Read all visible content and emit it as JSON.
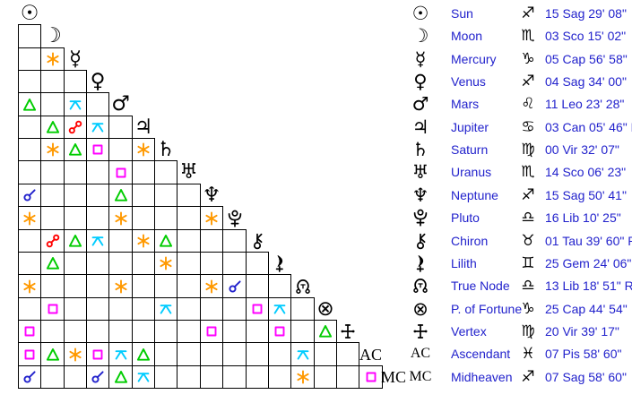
{
  "colors": {
    "background": "#FFFFFF",
    "grid_line": "#000000",
    "glyph_color": "#000000",
    "table_text": "#2222CC",
    "aspects": {
      "conjunction": "#2222CC",
      "sextile": "#FF9900",
      "square": "#FF00FF",
      "trine": "#00CC00",
      "opposition": "#FF0000",
      "quincunx": "#00CCFF"
    }
  },
  "aspect_grid": {
    "rows": [
      {
        "planet": "Sun",
        "glyph_char": "☉",
        "aspects": []
      },
      {
        "planet": "Moon",
        "glyph_char": "☽",
        "aspects": []
      },
      {
        "planet": "Mercury",
        "glyph_char": "☿",
        "aspects": [
          {
            "with": 1,
            "aspect": "sextile"
          }
        ]
      },
      {
        "planet": "Venus",
        "glyph_char": "♀",
        "aspects": []
      },
      {
        "planet": "Mars",
        "glyph_char": "♂",
        "aspects": [
          {
            "with": 0,
            "aspect": "trine"
          },
          {
            "with": 2,
            "aspect": "quincunx"
          }
        ]
      },
      {
        "planet": "Jupiter",
        "glyph_char": "♃",
        "aspects": [
          {
            "with": 1,
            "aspect": "trine"
          },
          {
            "with": 2,
            "aspect": "opposition"
          },
          {
            "with": 3,
            "aspect": "quincunx"
          }
        ]
      },
      {
        "planet": "Saturn",
        "glyph_char": "♄",
        "aspects": [
          {
            "with": 1,
            "aspect": "sextile"
          },
          {
            "with": 2,
            "aspect": "trine"
          },
          {
            "with": 3,
            "aspect": "square"
          },
          {
            "with": 5,
            "aspect": "sextile"
          }
        ]
      },
      {
        "planet": "Uranus",
        "glyph_char": "♅",
        "aspects": [
          {
            "with": 4,
            "aspect": "square"
          }
        ]
      },
      {
        "planet": "Neptune",
        "glyph_char": "♆",
        "aspects": [
          {
            "with": 0,
            "aspect": "conjunction"
          },
          {
            "with": 4,
            "aspect": "trine"
          }
        ]
      },
      {
        "planet": "Pluto",
        "glyph_svg": "pluto",
        "aspects": [
          {
            "with": 0,
            "aspect": "sextile"
          },
          {
            "with": 4,
            "aspect": "sextile"
          },
          {
            "with": 8,
            "aspect": "sextile"
          }
        ]
      },
      {
        "planet": "Chiron",
        "glyph_svg": "chiron",
        "aspects": [
          {
            "with": 1,
            "aspect": "opposition"
          },
          {
            "with": 2,
            "aspect": "trine"
          },
          {
            "with": 3,
            "aspect": "quincunx"
          },
          {
            "with": 5,
            "aspect": "sextile"
          },
          {
            "with": 6,
            "aspect": "trine"
          }
        ]
      },
      {
        "planet": "Lilith",
        "glyph_svg": "lilith",
        "aspects": [
          {
            "with": 1,
            "aspect": "trine"
          },
          {
            "with": 6,
            "aspect": "sextile"
          }
        ]
      },
      {
        "planet": "True Node",
        "glyph_svg": "true-node",
        "aspects": [
          {
            "with": 0,
            "aspect": "sextile"
          },
          {
            "with": 4,
            "aspect": "sextile"
          },
          {
            "with": 8,
            "aspect": "sextile"
          },
          {
            "with": 9,
            "aspect": "conjunction"
          }
        ]
      },
      {
        "planet": "P. of Fortune",
        "glyph_char": "⊗",
        "aspects": [
          {
            "with": 1,
            "aspect": "square"
          },
          {
            "with": 6,
            "aspect": "quincunx"
          },
          {
            "with": 10,
            "aspect": "square"
          },
          {
            "with": 11,
            "aspect": "quincunx"
          }
        ]
      },
      {
        "planet": "Vertex",
        "glyph_svg": "vertex",
        "aspects": [
          {
            "with": 0,
            "aspect": "square"
          },
          {
            "with": 8,
            "aspect": "square"
          },
          {
            "with": 11,
            "aspect": "square"
          },
          {
            "with": 13,
            "aspect": "trine"
          }
        ]
      },
      {
        "planet": "Ascendant",
        "glyph_text": "AC",
        "aspects": [
          {
            "with": 0,
            "aspect": "square"
          },
          {
            "with": 1,
            "aspect": "trine"
          },
          {
            "with": 2,
            "aspect": "sextile"
          },
          {
            "with": 3,
            "aspect": "square"
          },
          {
            "with": 4,
            "aspect": "quincunx"
          },
          {
            "with": 5,
            "aspect": "trine"
          },
          {
            "with": 12,
            "aspect": "quincunx"
          }
        ]
      },
      {
        "planet": "Midheaven",
        "glyph_text": "MC",
        "aspects": [
          {
            "with": 0,
            "aspect": "conjunction"
          },
          {
            "with": 3,
            "aspect": "conjunction"
          },
          {
            "with": 4,
            "aspect": "trine"
          },
          {
            "with": 5,
            "aspect": "quincunx"
          },
          {
            "with": 12,
            "aspect": "sextile"
          },
          {
            "with": 15,
            "aspect": "square"
          }
        ]
      }
    ]
  },
  "positions_table": {
    "rows": [
      {
        "name": "Sun",
        "glyph_char": "☉",
        "sign": "sagittarius",
        "sign_char": "♐",
        "position": "15 Sag 29' 08\""
      },
      {
        "name": "Moon",
        "glyph_char": "☽",
        "sign": "scorpio",
        "sign_char": "♏",
        "position": "03 Sco 15' 02\""
      },
      {
        "name": "Mercury",
        "glyph_char": "☿",
        "sign": "capricorn",
        "sign_char": "♑",
        "position": "05 Cap 56' 58\""
      },
      {
        "name": "Venus",
        "glyph_char": "♀",
        "sign": "sagittarius",
        "sign_char": "♐",
        "position": "04 Sag 34' 00\""
      },
      {
        "name": "Mars",
        "glyph_char": "♂",
        "sign": "leo",
        "sign_char": "♌",
        "position": "11 Leo 23' 28\""
      },
      {
        "name": "Jupiter",
        "glyph_char": "♃",
        "sign": "cancer",
        "sign_char": "♋",
        "position": "03 Can 05' 46\" R"
      },
      {
        "name": "Saturn",
        "glyph_char": "♄",
        "sign": "virgo",
        "sign_char": "♍",
        "position": "00 Vir 32' 07\""
      },
      {
        "name": "Uranus",
        "glyph_char": "♅",
        "sign": "scorpio",
        "sign_char": "♏",
        "position": "14 Sco 06' 23\""
      },
      {
        "name": "Neptune",
        "glyph_char": "♆",
        "sign": "sagittarius",
        "sign_char": "♐",
        "position": "15 Sag 50' 41\""
      },
      {
        "name": "Pluto",
        "glyph_svg": "pluto",
        "sign": "libra",
        "sign_char": "♎",
        "position": "16 Lib 10' 25\""
      },
      {
        "name": "Chiron",
        "glyph_svg": "chiron",
        "sign": "taurus",
        "sign_char": "♉",
        "position": "01 Tau 39' 60\" R"
      },
      {
        "name": "Lilith",
        "glyph_svg": "lilith",
        "sign": "gemini",
        "sign_char": "♊",
        "position": "25 Gem 24' 06\""
      },
      {
        "name": "True Node",
        "glyph_svg": "true-node",
        "sign": "libra",
        "sign_char": "♎",
        "position": "13 Lib 18' 51\" R"
      },
      {
        "name": "P. of Fortune",
        "glyph_char": "⊗",
        "sign": "capricorn",
        "sign_char": "♑",
        "position": "25 Cap 44' 54\""
      },
      {
        "name": "Vertex",
        "glyph_svg": "vertex",
        "sign": "virgo",
        "sign_char": "♍",
        "position": "20 Vir 39' 17\""
      },
      {
        "name": "Ascendant",
        "glyph_text": "AC",
        "sign": "pisces",
        "sign_char": "♓",
        "position": "07 Pis 58' 60\""
      },
      {
        "name": "Midheaven",
        "glyph_text": "MC",
        "sign": "sagittarius",
        "sign_char": "♐",
        "position": "07 Sag 58' 60\""
      }
    ]
  }
}
